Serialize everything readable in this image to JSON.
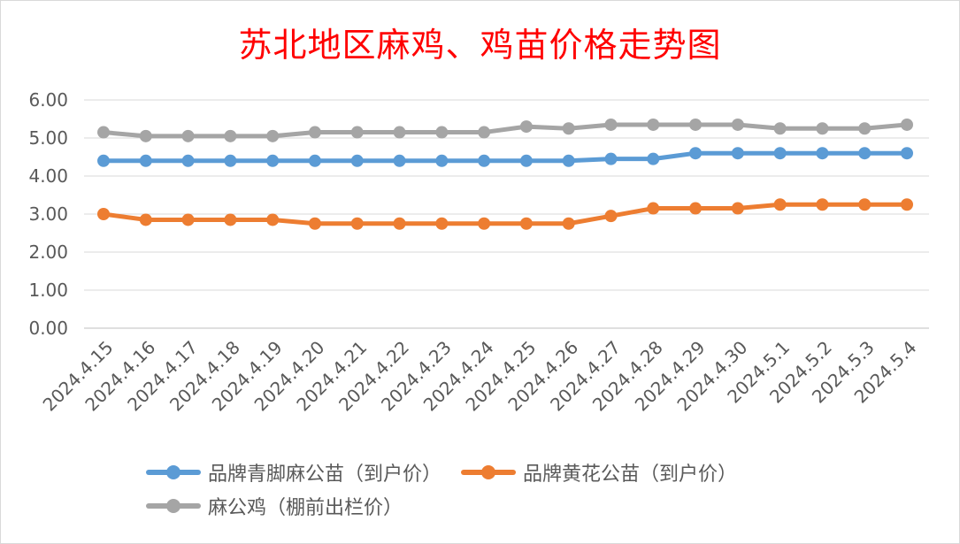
{
  "chart_data": {
    "type": "line",
    "title": "苏北地区麻鸡、鸡苗价格走势图",
    "xlabel": "",
    "ylabel": "",
    "ylim": [
      0,
      6
    ],
    "yticks": [
      "0.00",
      "1.00",
      "2.00",
      "3.00",
      "4.00",
      "5.00",
      "6.00"
    ],
    "grid": true,
    "legend": "bottom",
    "categories": [
      "2024.4.15",
      "2024.4.16",
      "2024.4.17",
      "2024.4.18",
      "2024.4.19",
      "2024.4.20",
      "2024.4.21",
      "2024.4.22",
      "2024.4.23",
      "2024.4.24",
      "2024.4.25",
      "2024.4.26",
      "2024.4.27",
      "2024.4.28",
      "2024.4.29",
      "2024.4.30",
      "2024.5.1",
      "2024.5.2",
      "2024.5.3",
      "2024.5.4"
    ],
    "series": [
      {
        "name": "品牌青脚麻公苗（到户价）",
        "color": "#5b9bd5",
        "values": [
          4.4,
          4.4,
          4.4,
          4.4,
          4.4,
          4.4,
          4.4,
          4.4,
          4.4,
          4.4,
          4.4,
          4.4,
          4.45,
          4.45,
          4.6,
          4.6,
          4.6,
          4.6,
          4.6,
          4.6
        ]
      },
      {
        "name": "品牌黄花公苗（到户价）",
        "color": "#ed7d31",
        "values": [
          3.0,
          2.85,
          2.85,
          2.85,
          2.85,
          2.75,
          2.75,
          2.75,
          2.75,
          2.75,
          2.75,
          2.75,
          2.95,
          3.15,
          3.15,
          3.15,
          3.25,
          3.25,
          3.25,
          3.25
        ]
      },
      {
        "name": "麻公鸡（棚前出栏价）",
        "color": "#a5a5a5",
        "values": [
          5.15,
          5.05,
          5.05,
          5.05,
          5.05,
          5.15,
          5.15,
          5.15,
          5.15,
          5.15,
          5.3,
          5.25,
          5.35,
          5.35,
          5.35,
          5.35,
          5.25,
          5.25,
          5.25,
          5.35
        ]
      }
    ]
  }
}
